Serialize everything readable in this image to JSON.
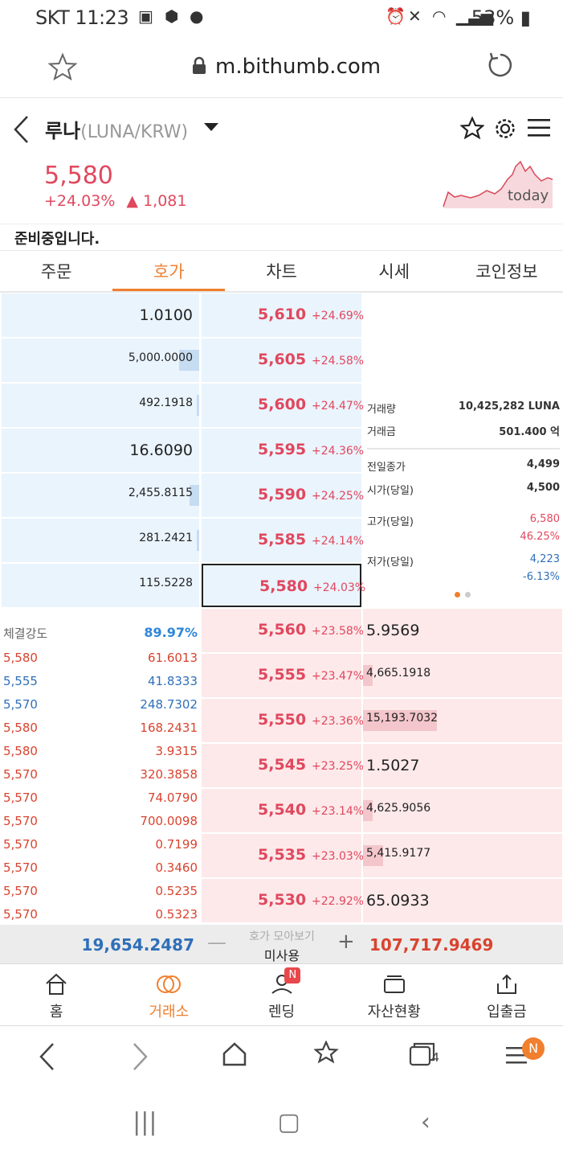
{
  "status": {
    "carrier": "SKT",
    "time": "11:23",
    "battery": "53%"
  },
  "browser": {
    "url": "m.bithumb.com"
  },
  "coin": {
    "name": "루나",
    "pair": "(LUNA/KRW)",
    "price": "5,580",
    "change_pct": "+24.03%",
    "change_abs": "1,081",
    "sparkline_label": "today"
  },
  "notice": "준비중입니다.",
  "tabs": [
    "주문",
    "호가",
    "차트",
    "시세",
    "코인정보"
  ],
  "asks": [
    {
      "qty": "1.0100",
      "price": "5,610",
      "pct": "+24.69%",
      "bar": 0
    },
    {
      "qty": "5,000.0000",
      "price": "5,605",
      "pct": "+24.58%",
      "bar": 0.1
    },
    {
      "qty": "492.1918",
      "price": "5,600",
      "pct": "+24.47%",
      "bar": 0.01
    },
    {
      "qty": "16.6090",
      "price": "5,595",
      "pct": "+24.36%",
      "bar": 0
    },
    {
      "qty": "2,455.8115",
      "price": "5,590",
      "pct": "+24.25%",
      "bar": 0.05
    },
    {
      "qty": "281.2421",
      "price": "5,585",
      "pct": "+24.14%",
      "bar": 0.01
    },
    {
      "qty": "115.5228",
      "price": "5,580",
      "pct": "+24.03%",
      "bar": 0
    }
  ],
  "bids": [
    {
      "qty": "5.9569",
      "price": "5,560",
      "pct": "+23.58%",
      "bar": 0
    },
    {
      "qty": "4,665.1918",
      "price": "5,555",
      "pct": "+23.47%",
      "bar": 0.05
    },
    {
      "qty": "15,193.7032",
      "price": "5,550",
      "pct": "+23.36%",
      "bar": 0.37
    },
    {
      "qty": "1.5027",
      "price": "5,545",
      "pct": "+23.25%",
      "bar": 0
    },
    {
      "qty": "4,625.9056",
      "price": "5,540",
      "pct": "+23.14%",
      "bar": 0.05
    },
    {
      "qty": "5,415.9177",
      "price": "5,535",
      "pct": "+23.03%",
      "bar": 0.1
    },
    {
      "qty": "65.0933",
      "price": "5,530",
      "pct": "+22.92%",
      "bar": 0
    }
  ],
  "stats": {
    "volume_label": "거래량",
    "volume": "10,425,282 LUNA",
    "amount_label": "거래금",
    "amount": "501.400 억",
    "prev_close_label": "전일종가",
    "prev_close": "4,499",
    "open_label": "시가(당일)",
    "open": "4,500",
    "high_label": "고가(당일)",
    "high": "6,580",
    "high_pct": "46.25%",
    "low_label": "저가(당일)",
    "low": "4,223",
    "low_pct": "-6.13%"
  },
  "strength": {
    "label": "체결강도",
    "value": "89.97%"
  },
  "trades": [
    {
      "p": "5,580",
      "q": "61.6013",
      "c": "#d9432e"
    },
    {
      "p": "5,555",
      "q": "41.8333",
      "c": "#2f6fb8"
    },
    {
      "p": "5,570",
      "q": "248.7302",
      "c": "#2f6fb8"
    },
    {
      "p": "5,580",
      "q": "168.2431",
      "c": "#d9432e"
    },
    {
      "p": "5,580",
      "q": "3.9315",
      "c": "#d9432e"
    },
    {
      "p": "5,570",
      "q": "320.3858",
      "c": "#d9432e"
    },
    {
      "p": "5,570",
      "q": "74.0790",
      "c": "#d9432e"
    },
    {
      "p": "5,570",
      "q": "700.0098",
      "c": "#d9432e"
    },
    {
      "p": "5,570",
      "q": "0.7199",
      "c": "#d9432e"
    },
    {
      "p": "5,570",
      "q": "0.3460",
      "c": "#d9432e"
    },
    {
      "p": "5,570",
      "q": "0.5235",
      "c": "#d9432e"
    },
    {
      "p": "5,570",
      "q": "0.5323",
      "c": "#d9432e"
    }
  ],
  "footer": {
    "ask_total": "19,654.2487",
    "toggle_label": "호가 모아보기",
    "toggle_value": "미사용",
    "bid_total": "107,717.9469"
  },
  "bottom_nav": [
    "홈",
    "거래소",
    "렌딩",
    "자산현황",
    "입출금"
  ],
  "badges": {
    "lending": "N",
    "menu": "N",
    "tabs_count": "4"
  },
  "colors": {
    "accent": "#f07f2e",
    "up": "#e0485e",
    "down": "#2f6fb8"
  }
}
